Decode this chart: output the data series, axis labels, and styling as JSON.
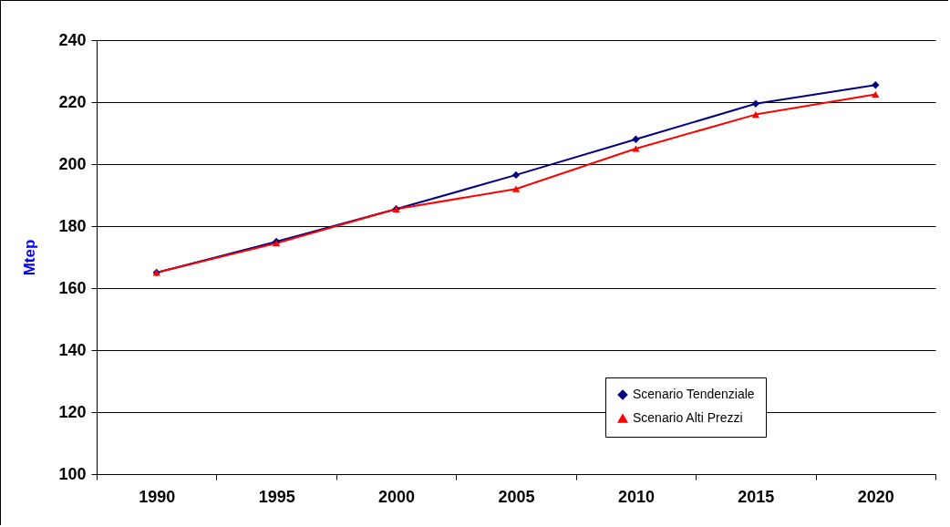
{
  "chart_data": {
    "type": "line",
    "ylabel": "Mtep",
    "categories": [
      "1990",
      "1995",
      "2000",
      "2005",
      "2010",
      "2015",
      "2020"
    ],
    "series": [
      {
        "name": "Scenario Tendenziale",
        "color": "#000080",
        "marker": "diamond",
        "values": [
          165,
          175,
          185.5,
          196.5,
          208,
          219.5,
          225.5
        ]
      },
      {
        "name": "Scenario Alti Prezzi",
        "color": "#ff0000",
        "marker": "triangle",
        "values": [
          165,
          174.5,
          185.5,
          192,
          205,
          216,
          222.5
        ]
      }
    ],
    "ylim": [
      100,
      240
    ],
    "yticks": [
      100,
      120,
      140,
      160,
      180,
      200,
      220,
      240
    ],
    "grid": "y",
    "legend": "bottom right"
  }
}
